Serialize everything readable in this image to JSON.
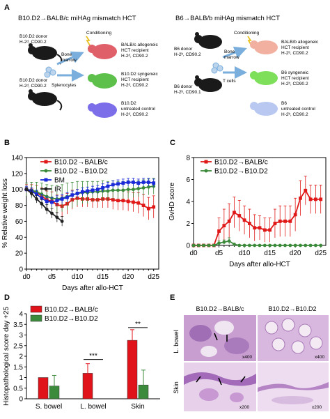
{
  "panels": {
    "a": {
      "label": "A",
      "left": {
        "title": "B10.D2→BALB/c miHAg mismatch HCT",
        "donor_top": [
          "B10.D2 donor",
          "H-2ᵈ, CD90.2"
        ],
        "donor_bottom": [
          "B10.D2 donor",
          "H-2ᵈ, CD90.2"
        ],
        "bone_marrow": [
          "Bone",
          "marrow"
        ],
        "cells": "Splenocytes",
        "conditioning": "Conditioning",
        "recipients": [
          {
            "lines": [
              "BALB/c allogeneic",
              "HCT recipient",
              "H-2ᵈ, CD90.2"
            ],
            "color": "#e0606a"
          },
          {
            "lines": [
              "B10.D2 syngeneic",
              "HCT recipient",
              "H-2ᵈ, CD90.2"
            ],
            "color": "#5cc04a"
          },
          {
            "lines": [
              "B10.D2",
              "untreated control",
              "H-2ᵈ, CD90.2"
            ],
            "color": "#7b6ee8"
          }
        ]
      },
      "right": {
        "title": "B6→BALB/b miHAg mismatch HCT",
        "donor_top": [
          "B6 donor",
          "H-2ᵇ, CD90.2"
        ],
        "donor_bottom": [
          "B6 donor",
          "H-2ᵇ, CD90.1"
        ],
        "bone_marrow": [
          "Bone",
          "marrow"
        ],
        "cells": "T cells",
        "conditioning": "Conditioning",
        "recipients": [
          {
            "lines": [
              "BALB/b allogeneic",
              "HCT recipient",
              "H-2ᵇ, CD90.2"
            ],
            "color": "#f2b0a0"
          },
          {
            "lines": [
              "B6 syngeneic",
              "HCT recipient",
              "H-2ᵇ, CD90.2"
            ],
            "color": "#7ee05a"
          },
          {
            "lines": [
              "B6",
              "untreated control",
              "H-2ᵇ, CD90.2"
            ],
            "color": "#b8c8f0"
          }
        ]
      }
    },
    "b": {
      "label": "B"
    },
    "c": {
      "label": "C"
    },
    "d": {
      "label": "D",
      "sig": [
        "***",
        "**"
      ]
    },
    "e": {
      "label": "E",
      "col_titles": [
        "B10.D2→BALB/c",
        "B10.D2→B10.D2"
      ],
      "row_titles": [
        "L. bowel",
        "Skin"
      ],
      "magnifications": [
        "x400",
        "x400",
        "x200",
        "x200"
      ]
    }
  },
  "chart_data": [
    {
      "type": "line",
      "panel": "B",
      "xlabel": "Days after allo-HCT",
      "ylabel": "% Relative weight loss",
      "xticks": [
        "d0",
        "d5",
        "d10",
        "d15",
        "d20",
        "d25"
      ],
      "xlim": [
        0,
        26
      ],
      "ylim": [
        0,
        140
      ],
      "yticks": [
        0,
        20,
        40,
        60,
        80,
        100,
        120,
        140
      ],
      "legend": "top-left",
      "series": [
        {
          "name": "B10.D2→BALB/c",
          "color": "#e01818",
          "x": [
            0,
            1,
            2,
            3,
            4,
            5,
            6,
            7,
            8,
            9,
            10,
            11,
            12,
            13,
            14,
            15,
            16,
            17,
            18,
            19,
            20,
            21,
            22,
            23,
            24,
            25
          ],
          "y": [
            100,
            99,
            96,
            92,
            87,
            85,
            81,
            79,
            82,
            87,
            89,
            88,
            88,
            87,
            87,
            88,
            88,
            87,
            86,
            86,
            85,
            84,
            83,
            80,
            76,
            78
          ],
          "err": [
            6,
            7,
            9,
            10,
            11,
            12,
            12,
            13,
            13,
            12,
            11,
            10,
            10,
            10,
            10,
            11,
            11,
            12,
            12,
            12,
            12,
            12,
            13,
            14,
            14,
            14
          ]
        },
        {
          "name": "B10.D2→B10.D2",
          "color": "#3a8a3a",
          "x": [
            0,
            1,
            2,
            3,
            4,
            5,
            6,
            7,
            8,
            9,
            10,
            11,
            12,
            13,
            14,
            15,
            16,
            17,
            18,
            19,
            20,
            21,
            22,
            23,
            24,
            25
          ],
          "y": [
            100,
            99,
            97,
            94,
            91,
            89,
            88,
            89,
            91,
            93,
            95,
            96,
            96,
            97,
            97,
            98,
            98,
            99,
            99,
            99,
            100,
            100,
            101,
            102,
            103,
            104
          ],
          "err": [
            8,
            10,
            12,
            14,
            15,
            16,
            17,
            17,
            17,
            16,
            15,
            14,
            14,
            13,
            13,
            13,
            12,
            12,
            11,
            11,
            11,
            10,
            10,
            10,
            10,
            10
          ]
        },
        {
          "name": "BM",
          "color": "#1a2ad8",
          "x": [
            0,
            1,
            2,
            3,
            4,
            5,
            6,
            7,
            8,
            9,
            10,
            11,
            12,
            13,
            14,
            15,
            16,
            17,
            18,
            19,
            20,
            21,
            22,
            23,
            24,
            25
          ],
          "y": [
            100,
            98,
            94,
            89,
            85,
            84,
            86,
            88,
            90,
            93,
            95,
            97,
            98,
            99,
            100,
            102,
            104,
            106,
            107,
            108,
            109,
            109,
            108,
            109,
            109,
            108
          ],
          "err": [
            4,
            4,
            5,
            5,
            6,
            6,
            6,
            6,
            6,
            5,
            5,
            5,
            5,
            5,
            5,
            5,
            5,
            5,
            5,
            5,
            5,
            5,
            5,
            5,
            5,
            5
          ]
        },
        {
          "name": "IR",
          "color": "#222222",
          "x": [
            0,
            1,
            2,
            3,
            4,
            5,
            6,
            7
          ],
          "y": [
            100,
            95,
            88,
            82,
            75,
            70,
            65,
            60
          ],
          "err": [
            3,
            4,
            5,
            6,
            6,
            6,
            6,
            6
          ]
        }
      ]
    },
    {
      "type": "line",
      "panel": "C",
      "xlabel": "Days after allo-HCT",
      "ylabel": "GvHD score",
      "xticks": [
        "d0",
        "d5",
        "d10",
        "d15",
        "d20",
        "d25"
      ],
      "xlim": [
        0,
        26
      ],
      "ylim": [
        0,
        8
      ],
      "yticks": [
        0,
        2,
        4,
        6,
        8
      ],
      "legend": "top-left",
      "series": [
        {
          "name": "B10.D2→BALB/c",
          "color": "#e01818",
          "x": [
            0,
            1,
            2,
            3,
            4,
            5,
            6,
            7,
            8,
            9,
            10,
            11,
            12,
            13,
            14,
            15,
            16,
            17,
            18,
            19,
            20,
            21,
            22,
            23,
            24,
            25
          ],
          "y": [
            0,
            0,
            0,
            0,
            0,
            1.3,
            1.8,
            2.2,
            3.0,
            2.7,
            2.3,
            2.0,
            1.6,
            1.6,
            1.4,
            1.4,
            2.0,
            2.2,
            2.2,
            2.2,
            2.8,
            4.3,
            5.0,
            4.2,
            4.2,
            4.2
          ],
          "err": [
            0,
            0,
            0,
            0,
            0,
            1.2,
            1.5,
            1.6,
            1.4,
            1.4,
            1.3,
            1.3,
            1.2,
            1.1,
            1.1,
            1.1,
            1.3,
            1.4,
            1.4,
            1.4,
            1.5,
            1.6,
            1.3,
            1.3,
            1.3,
            1.3
          ]
        },
        {
          "name": "B10.D2→B10.D2",
          "color": "#3a8a3a",
          "x": [
            0,
            1,
            2,
            3,
            4,
            5,
            6,
            7,
            8,
            9,
            10,
            11,
            12,
            13,
            14,
            15,
            16,
            17,
            18,
            19,
            20,
            21,
            22,
            23,
            24,
            25
          ],
          "y": [
            0,
            0,
            0,
            0,
            0,
            0.2,
            0.3,
            0.4,
            0.1,
            0,
            0,
            0,
            0,
            0,
            0,
            0,
            0,
            0,
            0,
            0,
            0,
            0,
            0,
            0,
            0,
            0
          ],
          "err": [
            0,
            0,
            0,
            0,
            0,
            0.2,
            0.2,
            0.3,
            0.1,
            0,
            0,
            0,
            0,
            0,
            0,
            0,
            0,
            0,
            0,
            0,
            0,
            0,
            0,
            0,
            0,
            0
          ]
        }
      ]
    },
    {
      "type": "bar",
      "panel": "D",
      "ylabel": "Histopathological score day +25",
      "categories": [
        "S. bowel",
        "L. bowel",
        "Skin"
      ],
      "ylim": [
        0,
        4
      ],
      "yticks": [
        0,
        0.5,
        1,
        1.5,
        2,
        2.5,
        3,
        3.5,
        4
      ],
      "legend": "top-left",
      "series": [
        {
          "name": "B10.D2→BALB/c",
          "color": "#e0121a",
          "values": [
            1.0,
            1.2,
            2.75
          ],
          "err": [
            0,
            0.45,
            0.5
          ]
        },
        {
          "name": "B10.D2→B10.D2",
          "color": "#3c8a3c",
          "values": [
            0.6,
            0.0,
            0.65
          ],
          "err": [
            0.5,
            0,
            0.7
          ]
        }
      ]
    }
  ]
}
